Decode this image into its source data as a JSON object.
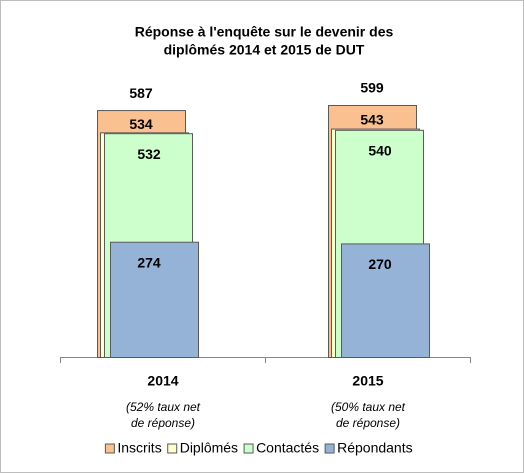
{
  "chart_data": {
    "type": "overlapped-bar",
    "title": [
      "Réponse à l'enquête sur le devenir des",
      "diplômés  2014 et 2015 de DUT"
    ],
    "categories": [
      "2014",
      "2015"
    ],
    "category_notes": [
      [
        "(52% taux net",
        "de réponse)"
      ],
      [
        "(50% taux net",
        "de réponse)"
      ]
    ],
    "series": [
      {
        "name": "Inscrits",
        "color": "#fac090",
        "values": [
          587,
          599
        ]
      },
      {
        "name": "Diplômés",
        "color": "#ffffcc",
        "values": [
          534,
          543
        ]
      },
      {
        "name": "Contactés",
        "color": "#ccffcc",
        "values": [
          532,
          540
        ]
      },
      {
        "name": "Répondants",
        "color": "#95b3d7",
        "values": [
          274,
          270
        ]
      }
    ],
    "legend": "bottom"
  }
}
